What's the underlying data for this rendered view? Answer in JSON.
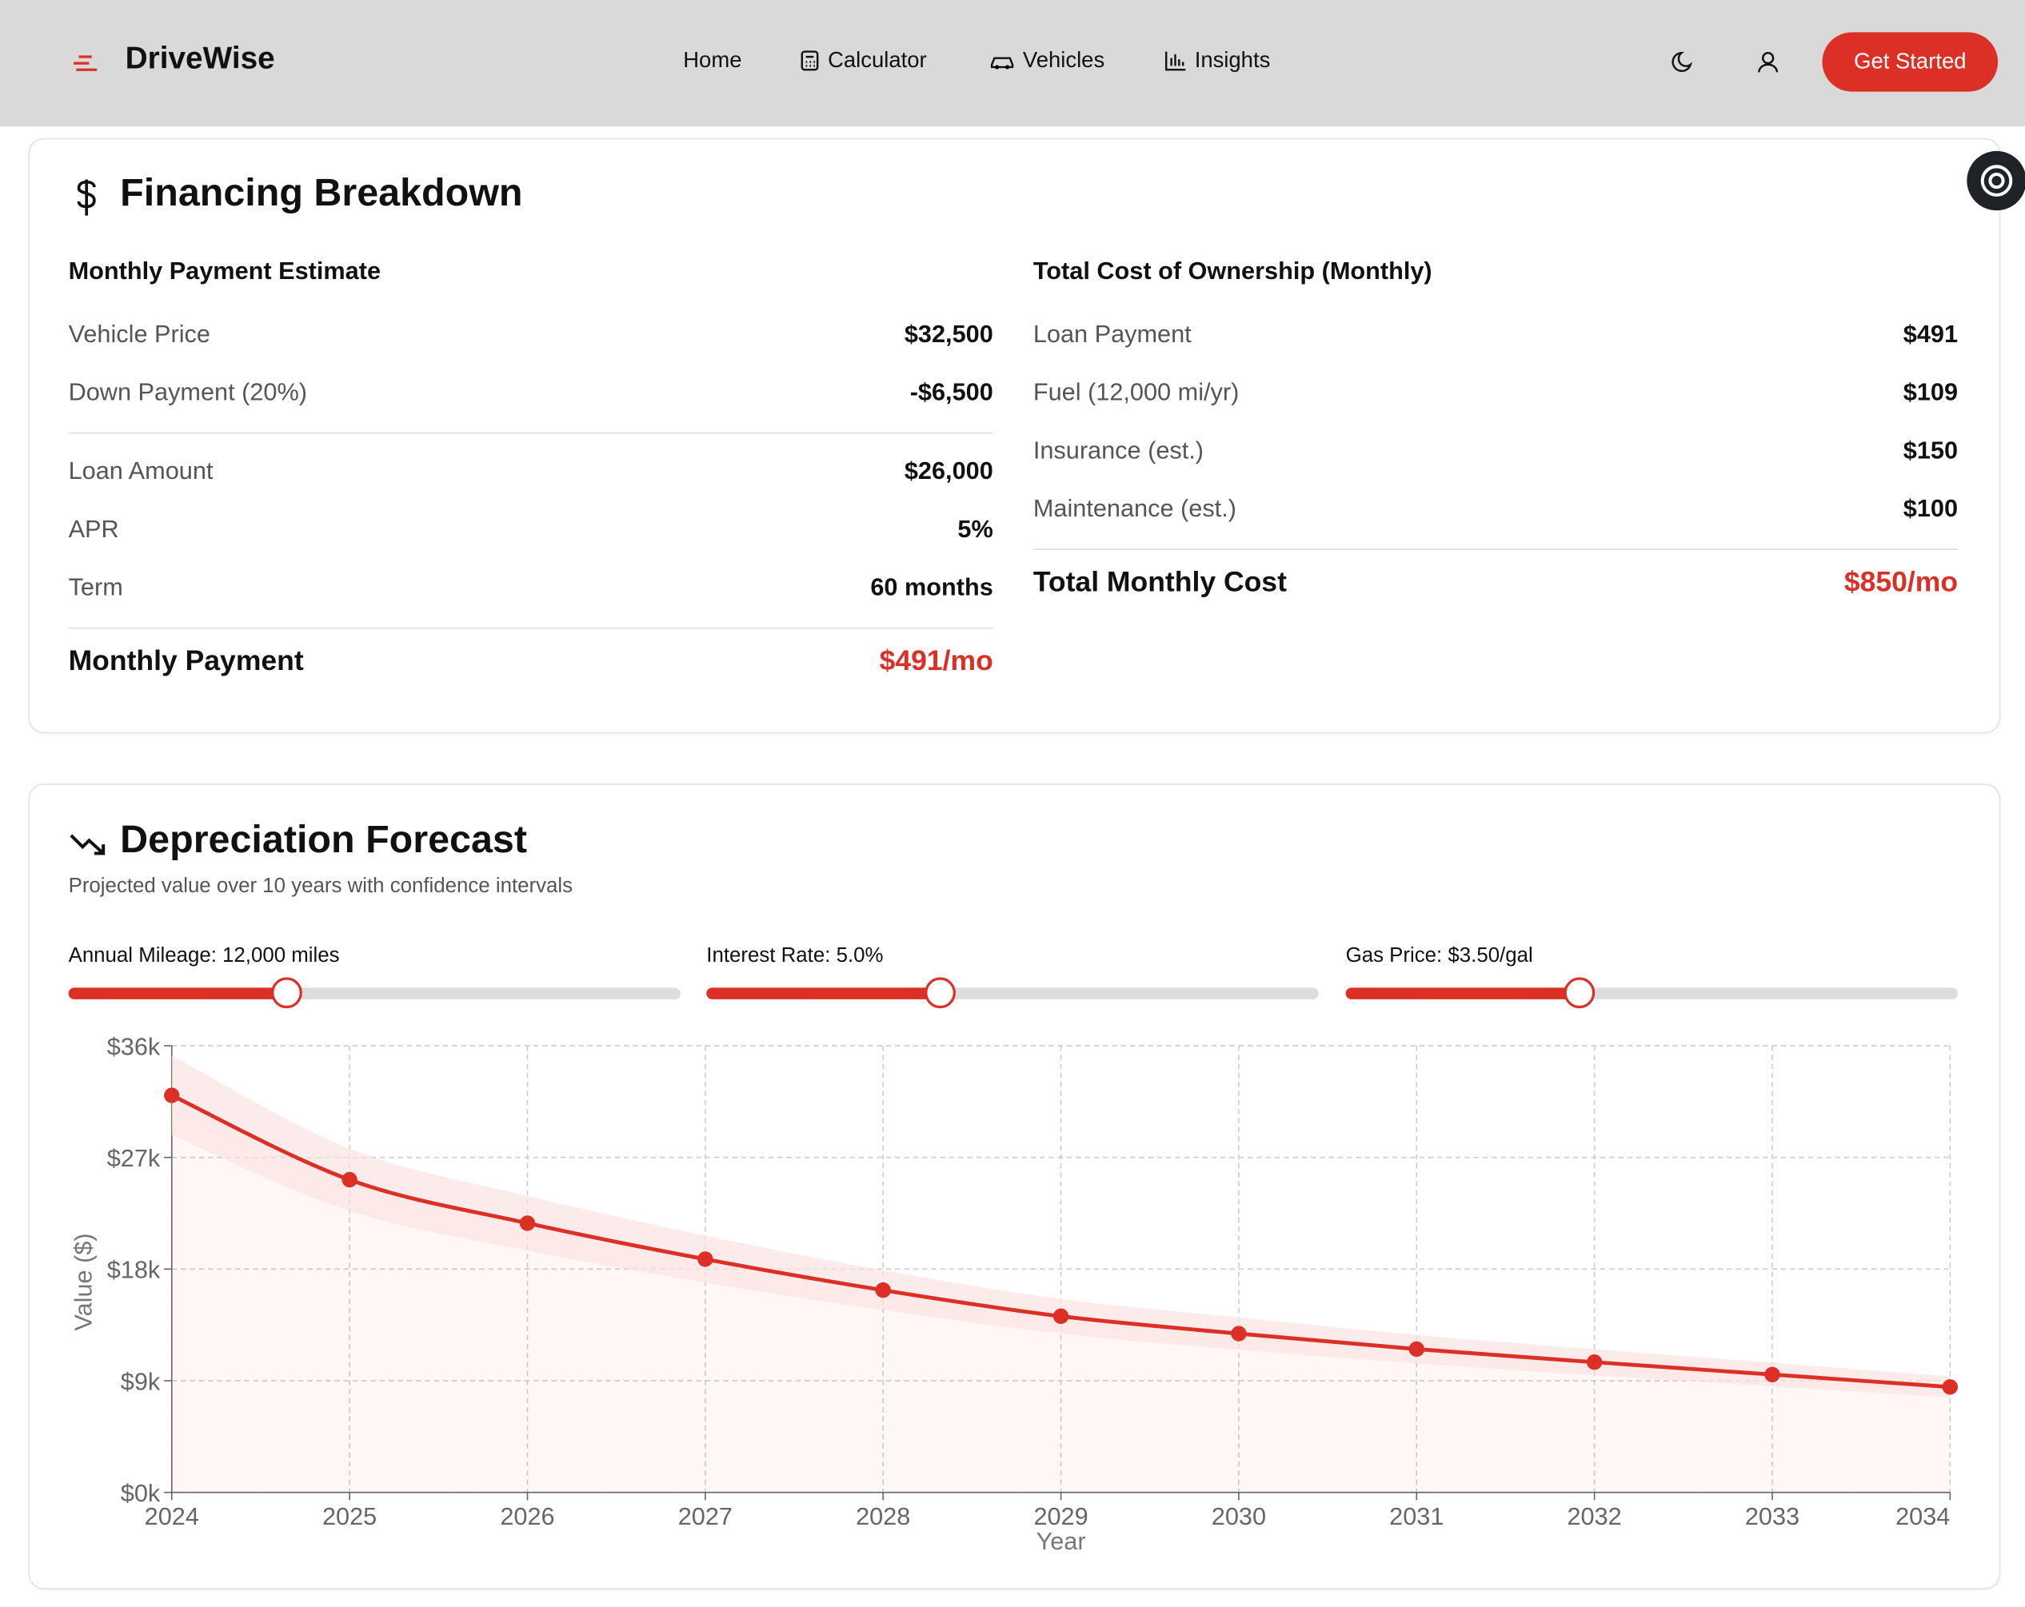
{
  "header": {
    "brand": "DriveWise",
    "nav": [
      "Home",
      "Calculator",
      "Vehicles",
      "Insights"
    ],
    "cta": "Get Started"
  },
  "financing": {
    "title": "Financing Breakdown",
    "left": {
      "heading": "Monthly Payment Estimate",
      "groups": [
        [
          [
            "Vehicle Price",
            "$32,500"
          ],
          [
            "Down Payment (20%)",
            "-$6,500"
          ]
        ],
        [
          [
            "Loan Amount",
            "$26,000"
          ],
          [
            "APR",
            "5%"
          ],
          [
            "Term",
            "60 months"
          ]
        ]
      ],
      "total": [
        "Monthly Payment",
        "$491/mo"
      ]
    },
    "right": {
      "heading": "Total Cost of Ownership (Monthly)",
      "groups": [
        [
          [
            "Loan Payment",
            "$491"
          ],
          [
            "Fuel (12,000 mi/yr)",
            "$109"
          ],
          [
            "Insurance (est.)",
            "$150"
          ],
          [
            "Maintenance (est.)",
            "$100"
          ]
        ]
      ],
      "total": [
        "Total Monthly Cost",
        "$850/mo"
      ]
    }
  },
  "depreciation": {
    "title": "Depreciation Forecast",
    "subtitle": "Projected value over 10 years with confidence intervals",
    "sliders": [
      "Annual Mileage: 12,000 miles",
      "Interest Rate: 5.0%",
      "Gas Price: $3.50/gal"
    ]
  },
  "chart_data": {
    "type": "line",
    "x_label": "Year",
    "y_label": "Value ($)",
    "x": [
      2024,
      2025,
      2026,
      2027,
      2028,
      2029,
      2030,
      2031,
      2032,
      2033,
      2034
    ],
    "series": [
      {
        "color": "#dc2f26",
        "values": [
          32000,
          25200,
          21700,
          18800,
          16300,
          14200,
          12800,
          11550,
          10500,
          9500,
          8500
        ]
      }
    ],
    "band": {
      "color": "#fbe3e3",
      "upper": [
        35200,
        27700,
        23900,
        20700,
        17900,
        15600,
        14100,
        12700,
        11550,
        10450,
        9350
      ],
      "lower": [
        28800,
        22700,
        19500,
        16900,
        14700,
        12800,
        11500,
        10400,
        9450,
        8550,
        7650
      ]
    },
    "xlim": [
      2024,
      2034
    ],
    "xticks": [
      2024,
      2025,
      2026,
      2027,
      2028,
      2029,
      2030,
      2031,
      2032,
      2033,
      2034
    ],
    "ylim": [
      0,
      36000
    ],
    "yticks": [
      {
        "value": 0,
        "label": "$0k"
      },
      {
        "value": 9000,
        "label": "$9k"
      },
      {
        "value": 18000,
        "label": "$18k"
      },
      {
        "value": 27000,
        "label": "$27k"
      },
      {
        "value": 36000,
        "label": "$36k"
      }
    ],
    "grid": true
  }
}
